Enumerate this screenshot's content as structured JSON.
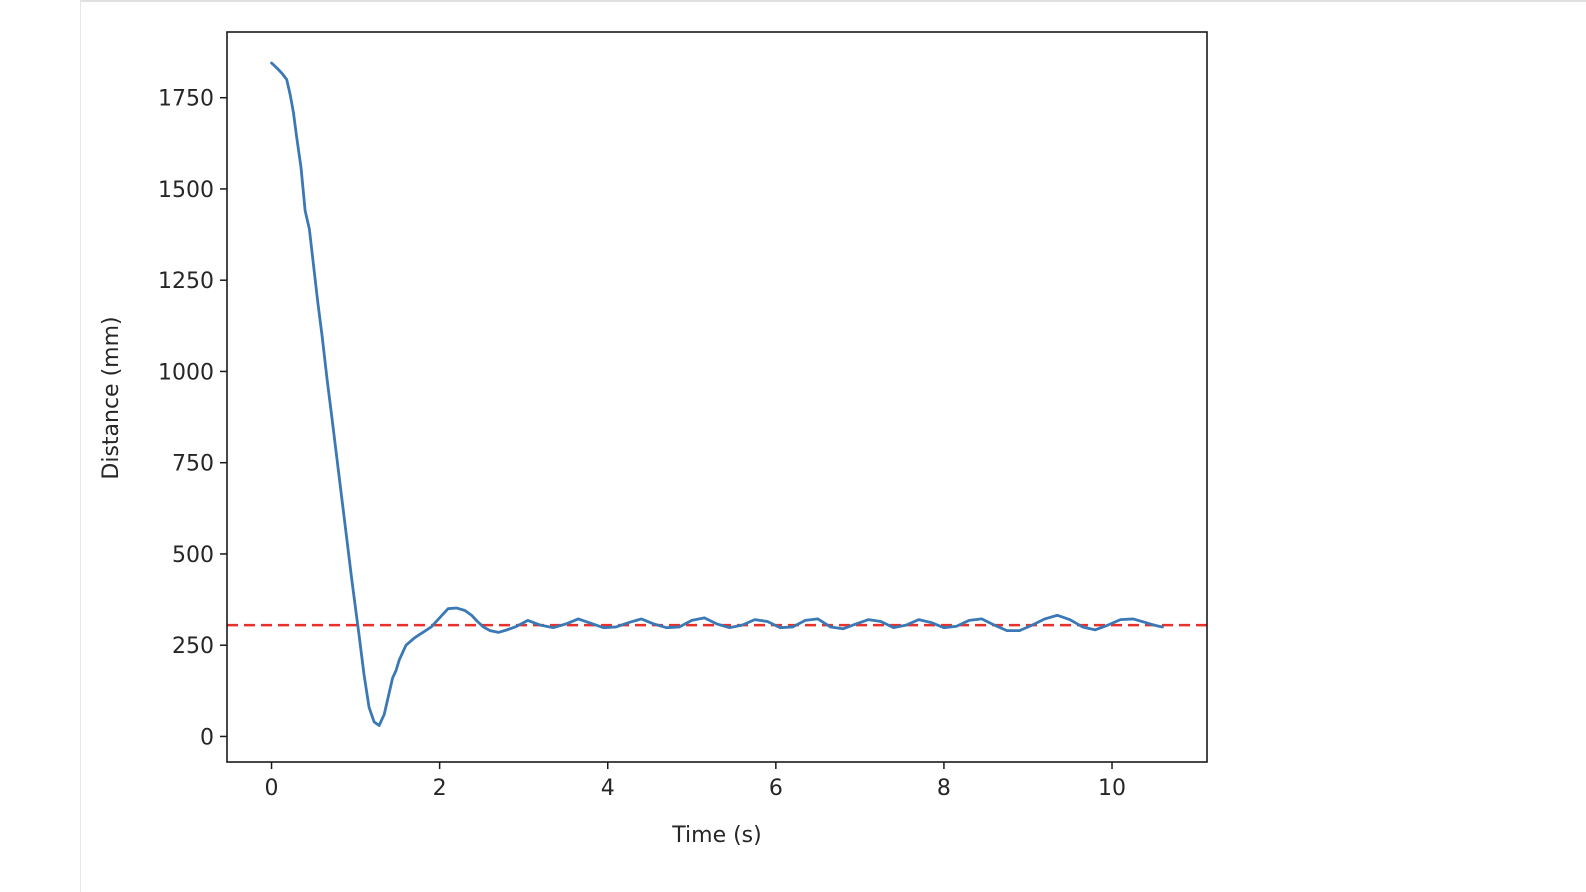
{
  "chart_data": {
    "type": "line",
    "xlabel": "Time (s)",
    "ylabel": "Distance (mm)",
    "xlim": [
      -0.53,
      11.13
    ],
    "ylim": [
      -70,
      1930
    ],
    "xticks": [
      0,
      2,
      4,
      6,
      8,
      10
    ],
    "yticks": [
      0,
      250,
      500,
      750,
      1000,
      1250,
      1500,
      1750
    ],
    "grid": false,
    "series": [
      {
        "color": "#3a78b6",
        "style": "solid",
        "x": [
          0.0,
          0.07,
          0.13,
          0.18,
          0.22,
          0.26,
          0.3,
          0.35,
          0.4,
          0.45,
          0.5,
          0.55,
          0.6,
          0.66,
          0.72,
          0.8,
          0.88,
          0.96,
          1.04,
          1.1,
          1.16,
          1.22,
          1.28,
          1.34,
          1.4,
          1.44,
          1.48,
          1.52,
          1.56,
          1.6,
          1.7,
          1.8,
          1.9,
          2.0,
          2.1,
          2.2,
          2.3,
          2.38,
          2.45,
          2.52,
          2.6,
          2.7,
          2.8,
          2.9,
          3.05,
          3.2,
          3.35,
          3.5,
          3.65,
          3.8,
          3.95,
          4.1,
          4.25,
          4.4,
          4.55,
          4.7,
          4.85,
          5.0,
          5.15,
          5.3,
          5.45,
          5.6,
          5.75,
          5.9,
          6.05,
          6.2,
          6.35,
          6.5,
          6.65,
          6.8,
          6.95,
          7.1,
          7.25,
          7.4,
          7.55,
          7.7,
          7.85,
          8.0,
          8.15,
          8.3,
          8.45,
          8.6,
          8.75,
          8.9,
          9.05,
          9.2,
          9.35,
          9.5,
          9.65,
          9.8,
          9.95,
          10.1,
          10.25,
          10.4,
          10.5,
          10.6
        ],
        "y": [
          1845,
          1830,
          1815,
          1800,
          1760,
          1710,
          1640,
          1560,
          1440,
          1390,
          1290,
          1190,
          1100,
          980,
          870,
          720,
          570,
          420,
          280,
          170,
          80,
          40,
          30,
          60,
          120,
          160,
          180,
          210,
          230,
          250,
          270,
          285,
          300,
          325,
          350,
          352,
          345,
          332,
          315,
          300,
          290,
          285,
          292,
          300,
          318,
          305,
          298,
          308,
          322,
          310,
          298,
          300,
          312,
          322,
          308,
          298,
          300,
          318,
          325,
          308,
          298,
          305,
          320,
          315,
          298,
          300,
          318,
          322,
          300,
          295,
          308,
          320,
          315,
          298,
          305,
          320,
          312,
          298,
          302,
          318,
          322,
          305,
          290,
          290,
          305,
          322,
          332,
          320,
          300,
          292,
          305,
          320,
          322,
          312,
          305,
          300
        ]
      }
    ],
    "reference_line": {
      "y": 305,
      "color": "#e8312b",
      "style": "dashed"
    }
  }
}
